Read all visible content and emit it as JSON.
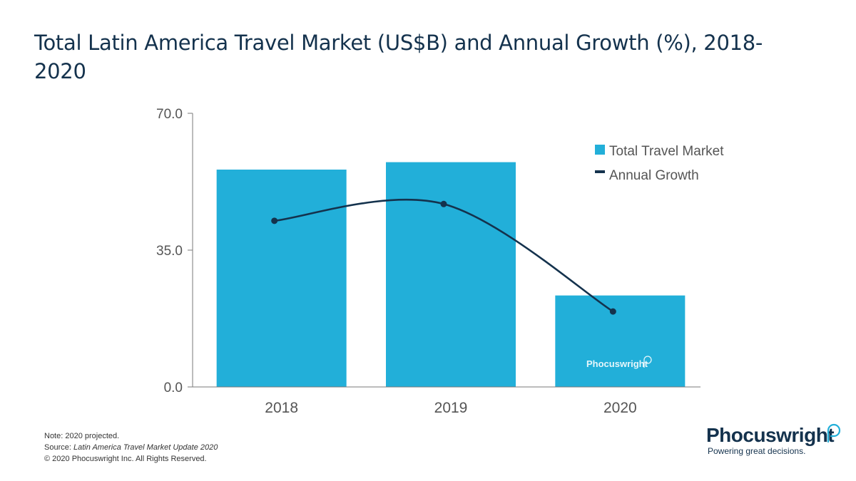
{
  "title": "Total Latin America Travel Market (US$B) and Annual Growth (%), 2018-2020",
  "chart_data": {
    "type": "bar",
    "categories": [
      "2018",
      "2019",
      "2020"
    ],
    "series": [
      {
        "name": "Total Travel Market",
        "kind": "bar",
        "values": [
          55.6,
          57.5,
          23.4
        ]
      },
      {
        "name": "Annual Growth",
        "kind": "line",
        "values": [
          42.5,
          46.8,
          19.3
        ]
      }
    ],
    "ylim": [
      0,
      70
    ],
    "yticks": [
      "0.0",
      "35.0",
      "70.0"
    ],
    "ytick_values": [
      0,
      35,
      70
    ],
    "xlabel": "",
    "ylabel": "",
    "legend": "top-right",
    "watermark": "Phocuswright",
    "colors": {
      "bar": "#22afd9",
      "line": "#14324d",
      "axis": "#7a7a7a",
      "tick_text": "#555555"
    }
  },
  "notes": {
    "note": "Note: 2020 projected.",
    "source_prefix": "Source: ",
    "source_title": "Latin America Travel Market Update 2020",
    "copyright": "© 2020 Phocuswright Inc. All Rights Reserved."
  },
  "logo": {
    "name": "Phocuswright",
    "tagline": "Powering great decisions."
  }
}
